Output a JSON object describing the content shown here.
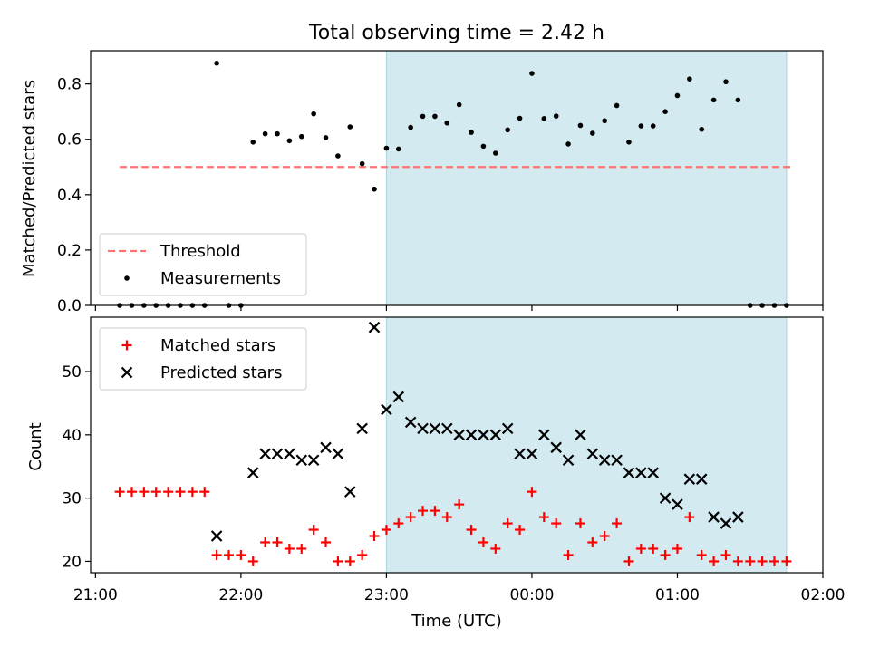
{
  "chart_data": [
    {
      "type": "scatter",
      "title": "Total observing time = 2.42 h",
      "xlabel": "",
      "ylabel": "Matched/Predicted stars",
      "ylim": [
        0,
        0.92
      ],
      "yticks": [
        "0.0",
        "0.2",
        "0.4",
        "0.6",
        "0.8"
      ],
      "shaded_interval": [
        "23:00",
        "01:45"
      ],
      "shade_color": "#d4eaf1",
      "legend_position": "lower-left",
      "threshold": {
        "name": "Threshold",
        "value": 0.5,
        "x_range": [
          "21:10",
          "01:47"
        ],
        "color": "#ff7373"
      },
      "series": [
        {
          "name": "Measurements",
          "marker": "dot",
          "color": "#000000",
          "points": [
            [
              "21:10",
              0
            ],
            [
              "21:15",
              0
            ],
            [
              "21:20",
              0
            ],
            [
              "21:25",
              0
            ],
            [
              "21:30",
              0
            ],
            [
              "21:35",
              0
            ],
            [
              "21:40",
              0
            ],
            [
              "21:45",
              0
            ],
            [
              "21:50",
              0.875
            ],
            [
              "21:55",
              0
            ],
            [
              "22:00",
              0
            ],
            [
              "22:05",
              0.59
            ],
            [
              "22:10",
              0.62
            ],
            [
              "22:15",
              0.62
            ],
            [
              "22:20",
              0.595
            ],
            [
              "22:25",
              0.61
            ],
            [
              "22:30",
              0.692
            ],
            [
              "22:35",
              0.606
            ],
            [
              "22:40",
              0.54
            ],
            [
              "22:45",
              0.645
            ],
            [
              "22:50",
              0.512
            ],
            [
              "22:55",
              0.42
            ],
            [
              "23:00",
              0.568
            ],
            [
              "23:05",
              0.565
            ],
            [
              "23:10",
              0.643
            ],
            [
              "23:15",
              0.683
            ],
            [
              "23:20",
              0.683
            ],
            [
              "23:25",
              0.659
            ],
            [
              "23:30",
              0.725
            ],
            [
              "23:35",
              0.625
            ],
            [
              "23:40",
              0.575
            ],
            [
              "23:45",
              0.55
            ],
            [
              "23:50",
              0.634
            ],
            [
              "23:55",
              0.676
            ],
            [
              "00:00",
              0.838
            ],
            [
              "00:05",
              0.675
            ],
            [
              "00:10",
              0.684
            ],
            [
              "00:15",
              0.583
            ],
            [
              "00:20",
              0.65
            ],
            [
              "00:25",
              0.622
            ],
            [
              "00:30",
              0.667
            ],
            [
              "00:35",
              0.722
            ],
            [
              "00:40",
              0.59
            ],
            [
              "00:45",
              0.648
            ],
            [
              "00:50",
              0.648
            ],
            [
              "00:55",
              0.7
            ],
            [
              "01:00",
              0.758
            ],
            [
              "01:05",
              0.818
            ],
            [
              "01:10",
              0.636
            ],
            [
              "01:15",
              0.742
            ],
            [
              "01:20",
              0.808
            ],
            [
              "01:25",
              0.742
            ],
            [
              "01:30",
              0
            ],
            [
              "01:35",
              0
            ],
            [
              "01:40",
              0
            ],
            [
              "01:45",
              0
            ]
          ]
        }
      ]
    },
    {
      "type": "scatter",
      "title": "",
      "xlabel": "Time (UTC)",
      "ylabel": "Count",
      "ylim": [
        18.2,
        58.6
      ],
      "yticks": [
        "20",
        "30",
        "40",
        "50"
      ],
      "xticks": [
        "21:00",
        "22:00",
        "23:00",
        "00:00",
        "01:00",
        "02:00"
      ],
      "shaded_interval": [
        "23:00",
        "01:45"
      ],
      "shade_color": "#d4eaf1",
      "legend_position": "upper-left",
      "series": [
        {
          "name": "Matched stars",
          "marker": "plus",
          "color": "#ff0000",
          "points": [
            [
              "21:10",
              31
            ],
            [
              "21:15",
              31
            ],
            [
              "21:20",
              31
            ],
            [
              "21:25",
              31
            ],
            [
              "21:30",
              31
            ],
            [
              "21:35",
              31
            ],
            [
              "21:40",
              31
            ],
            [
              "21:45",
              31
            ],
            [
              "21:50",
              21
            ],
            [
              "21:55",
              21
            ],
            [
              "22:00",
              21
            ],
            [
              "22:05",
              20
            ],
            [
              "22:10",
              23
            ],
            [
              "22:15",
              23
            ],
            [
              "22:20",
              22
            ],
            [
              "22:25",
              22
            ],
            [
              "22:30",
              25
            ],
            [
              "22:35",
              23
            ],
            [
              "22:40",
              20
            ],
            [
              "22:45",
              20
            ],
            [
              "22:50",
              21
            ],
            [
              "22:55",
              24
            ],
            [
              "23:00",
              25
            ],
            [
              "23:05",
              26
            ],
            [
              "23:10",
              27
            ],
            [
              "23:15",
              28
            ],
            [
              "23:20",
              28
            ],
            [
              "23:25",
              27
            ],
            [
              "23:30",
              29
            ],
            [
              "23:35",
              25
            ],
            [
              "23:40",
              23
            ],
            [
              "23:45",
              22
            ],
            [
              "23:50",
              26
            ],
            [
              "23:55",
              25
            ],
            [
              "00:00",
              31
            ],
            [
              "00:05",
              27
            ],
            [
              "00:10",
              26
            ],
            [
              "00:15",
              21
            ],
            [
              "00:20",
              26
            ],
            [
              "00:25",
              23
            ],
            [
              "00:30",
              24
            ],
            [
              "00:35",
              26
            ],
            [
              "00:40",
              20
            ],
            [
              "00:45",
              22
            ],
            [
              "00:50",
              22
            ],
            [
              "00:55",
              21
            ],
            [
              "01:00",
              22
            ],
            [
              "01:05",
              27
            ],
            [
              "01:10",
              21
            ],
            [
              "01:15",
              20
            ],
            [
              "01:20",
              21
            ],
            [
              "01:25",
              20
            ],
            [
              "01:30",
              20
            ],
            [
              "01:35",
              20
            ],
            [
              "01:40",
              20
            ],
            [
              "01:45",
              20
            ]
          ]
        },
        {
          "name": "Predicted stars",
          "marker": "x",
          "color": "#000000",
          "points": [
            [
              "21:50",
              24
            ],
            [
              "22:05",
              34
            ],
            [
              "22:10",
              37
            ],
            [
              "22:15",
              37
            ],
            [
              "22:20",
              37
            ],
            [
              "22:25",
              36
            ],
            [
              "22:30",
              36
            ],
            [
              "22:35",
              38
            ],
            [
              "22:40",
              37
            ],
            [
              "22:45",
              31
            ],
            [
              "22:50",
              41
            ],
            [
              "22:55",
              57
            ],
            [
              "23:00",
              44
            ],
            [
              "23:05",
              46
            ],
            [
              "23:10",
              42
            ],
            [
              "23:15",
              41
            ],
            [
              "23:20",
              41
            ],
            [
              "23:25",
              41
            ],
            [
              "23:30",
              40
            ],
            [
              "23:35",
              40
            ],
            [
              "23:40",
              40
            ],
            [
              "23:45",
              40
            ],
            [
              "23:50",
              41
            ],
            [
              "23:55",
              37
            ],
            [
              "00:00",
              37
            ],
            [
              "00:05",
              40
            ],
            [
              "00:10",
              38
            ],
            [
              "00:15",
              36
            ],
            [
              "00:20",
              40
            ],
            [
              "00:25",
              37
            ],
            [
              "00:30",
              36
            ],
            [
              "00:35",
              36
            ],
            [
              "00:40",
              34
            ],
            [
              "00:45",
              34
            ],
            [
              "00:50",
              34
            ],
            [
              "00:55",
              30
            ],
            [
              "01:00",
              29
            ],
            [
              "01:05",
              33
            ],
            [
              "01:10",
              33
            ],
            [
              "01:15",
              27
            ],
            [
              "01:20",
              26
            ],
            [
              "01:25",
              27
            ]
          ]
        }
      ]
    }
  ]
}
